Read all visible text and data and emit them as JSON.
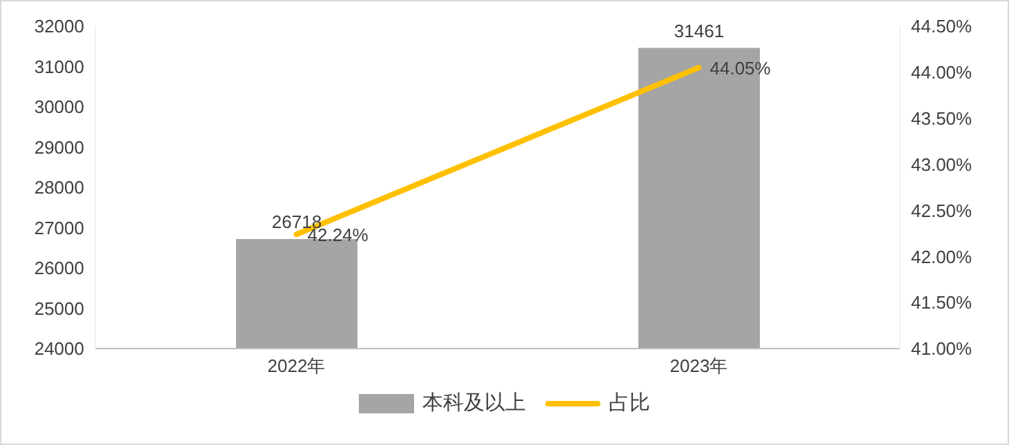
{
  "chart_data": {
    "type": "bar",
    "categories": [
      "2022年",
      "2023年"
    ],
    "series": [
      {
        "name": "本科及以上",
        "color": "#a5a5a5",
        "values": [
          26718,
          31461
        ],
        "value_labels": [
          "26718",
          "31461"
        ]
      },
      {
        "name": "占比",
        "type": "line",
        "axis": "y2",
        "color": "#ffc000",
        "values": [
          42.24,
          44.05
        ],
        "value_labels": [
          "42.24%",
          "44.05%"
        ]
      }
    ],
    "ylim": [
      24000,
      32000
    ],
    "yticks": [
      24000,
      25000,
      26000,
      27000,
      28000,
      29000,
      30000,
      31000,
      32000
    ],
    "y2lim": [
      41,
      44.5
    ],
    "y2ticks": [
      {
        "value": 41,
        "label": "41.00%"
      },
      {
        "value": 41.5,
        "label": "41.50%"
      },
      {
        "value": 42,
        "label": "42.00%"
      },
      {
        "value": 42.5,
        "label": "42.50%"
      },
      {
        "value": 43,
        "label": "43.00%"
      },
      {
        "value": 43.5,
        "label": "43.50%"
      },
      {
        "value": 44,
        "label": "44.00%"
      },
      {
        "value": 44.5,
        "label": "44.50%"
      }
    ],
    "grid": false,
    "legend": "bottom",
    "marker": "none",
    "line_style": "solid"
  }
}
